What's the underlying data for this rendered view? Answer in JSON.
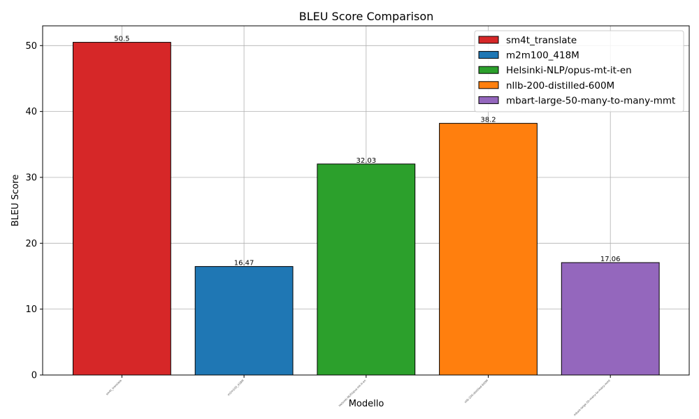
{
  "chart_data": {
    "type": "bar",
    "title": "BLEU Score Comparison",
    "xlabel": "Modello",
    "ylabel": "BLEU Score",
    "ylim": [
      0,
      53
    ],
    "yticks": [
      0,
      10,
      20,
      30,
      40,
      50
    ],
    "grid": true,
    "legend_position": "top-right",
    "categories": [
      "sm4t_translate",
      "m2m100_418M",
      "Helsinki-NLP/opus-mt-it-en",
      "nllb-200-distilled-600M",
      "mbart-large-50-many-to-many-mmt"
    ],
    "values": [
      50.5,
      16.47,
      32.03,
      38.2,
      17.06
    ],
    "value_labels": [
      "50.5",
      "16.47",
      "32.03",
      "38.2",
      "17.06"
    ],
    "colors": [
      "#d62728",
      "#1f77b4",
      "#2ca02c",
      "#ff7f0e",
      "#9467bd"
    ],
    "edge_color": "#000000"
  }
}
